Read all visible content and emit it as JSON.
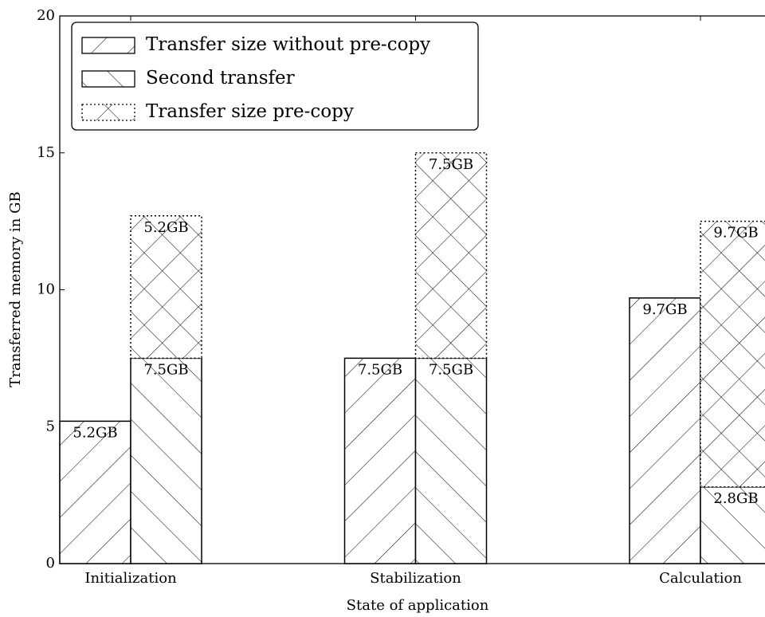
{
  "chart_data": {
    "type": "bar",
    "xlabel": "State of application",
    "ylabel": "Transferred memory in GB",
    "categories": [
      "Initialization",
      "Stabilization",
      "Calculation"
    ],
    "series": [
      {
        "name": "Transfer size without pre-copy",
        "color": "#000000",
        "hatch": "/",
        "border": "solid",
        "values": [
          5.2,
          7.5,
          9.7
        ],
        "value_labels": [
          "5.2GB",
          "7.5GB",
          "9.7GB"
        ]
      },
      {
        "name": "Second transfer",
        "color": "#000000",
        "hatch": "\\",
        "border": "solid",
        "values": [
          7.5,
          7.5,
          2.8
        ],
        "value_labels": [
          "7.5GB",
          "7.5GB",
          "2.8GB"
        ]
      },
      {
        "name": "Transfer size pre-copy",
        "color": "#000000",
        "hatch": "x",
        "border": "dotted",
        "values": [
          5.2,
          7.5,
          9.7
        ],
        "value_labels": [
          "5.2GB",
          "7.5GB",
          "9.7GB"
        ]
      }
    ],
    "ylim": [
      0,
      20
    ],
    "yticks": [
      0,
      5,
      10,
      15,
      20
    ],
    "legend": "upper left",
    "grid": false
  }
}
